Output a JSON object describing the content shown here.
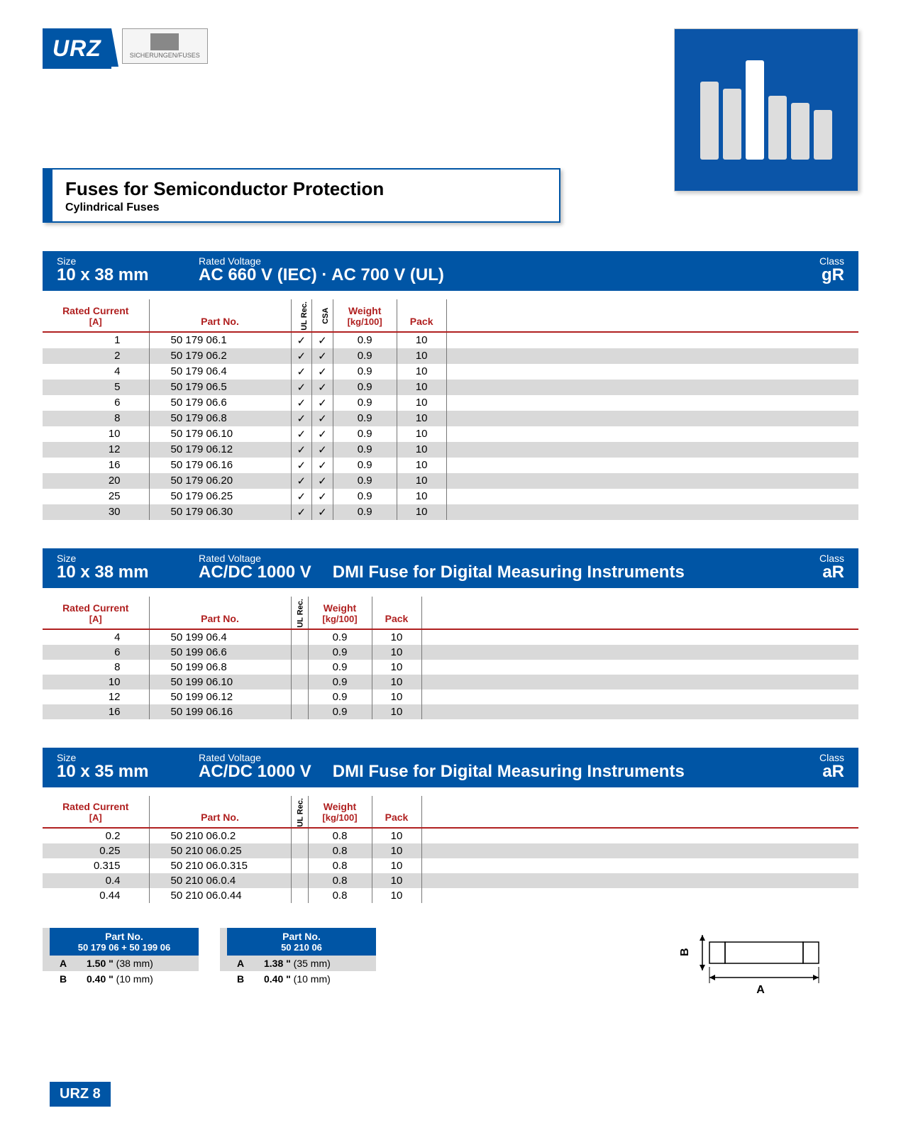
{
  "brand": "URZ",
  "sibaLabel": "SICHERUNGEN/FUSES",
  "title": "Fuses for Semiconductor Protection",
  "subtitle": "Cylindrical Fuses",
  "footer": "URZ 8",
  "columns": {
    "ratedCurrent": "Rated Current",
    "ratedCurrentUnit": "[A]",
    "partNo": "Part No.",
    "ulRec": "UL Rec.",
    "csa": "CSA",
    "weight": "Weight",
    "weightUnit": "[kg/100]",
    "pack": "Pack"
  },
  "headerLabels": {
    "size": "Size",
    "voltage": "Rated Voltage",
    "class": "Class"
  },
  "sections": [
    {
      "size": "10 x 38 mm",
      "voltage": "AC 660 V (IEC) · AC 700 V (UL)",
      "desc": "",
      "class": "gR",
      "hasCSA": true,
      "rows": [
        {
          "a": "1",
          "pn": "50 179 06.1",
          "ul": "✓",
          "csa": "✓",
          "w": "0.9",
          "p": "10"
        },
        {
          "a": "2",
          "pn": "50 179 06.2",
          "ul": "✓",
          "csa": "✓",
          "w": "0.9",
          "p": "10"
        },
        {
          "a": "4",
          "pn": "50 179 06.4",
          "ul": "✓",
          "csa": "✓",
          "w": "0.9",
          "p": "10"
        },
        {
          "a": "5",
          "pn": "50 179 06.5",
          "ul": "✓",
          "csa": "✓",
          "w": "0.9",
          "p": "10"
        },
        {
          "a": "6",
          "pn": "50 179 06.6",
          "ul": "✓",
          "csa": "✓",
          "w": "0.9",
          "p": "10"
        },
        {
          "a": "8",
          "pn": "50 179 06.8",
          "ul": "✓",
          "csa": "✓",
          "w": "0.9",
          "p": "10"
        },
        {
          "a": "10",
          "pn": "50 179 06.10",
          "ul": "✓",
          "csa": "✓",
          "w": "0.9",
          "p": "10"
        },
        {
          "a": "12",
          "pn": "50 179 06.12",
          "ul": "✓",
          "csa": "✓",
          "w": "0.9",
          "p": "10"
        },
        {
          "a": "16",
          "pn": "50 179 06.16",
          "ul": "✓",
          "csa": "✓",
          "w": "0.9",
          "p": "10"
        },
        {
          "a": "20",
          "pn": "50 179 06.20",
          "ul": "✓",
          "csa": "✓",
          "w": "0.9",
          "p": "10"
        },
        {
          "a": "25",
          "pn": "50 179 06.25",
          "ul": "✓",
          "csa": "✓",
          "w": "0.9",
          "p": "10"
        },
        {
          "a": "30",
          "pn": "50 179 06.30",
          "ul": "✓",
          "csa": "✓",
          "w": "0.9",
          "p": "10"
        }
      ]
    },
    {
      "size": "10 x 38 mm",
      "voltage": "AC/DC 1000 V",
      "desc": "DMI Fuse for Digital Measuring Instruments",
      "class": "aR",
      "hasCSA": false,
      "rows": [
        {
          "a": "4",
          "pn": "50 199 06.4",
          "ul": "",
          "w": "0.9",
          "p": "10"
        },
        {
          "a": "6",
          "pn": "50 199 06.6",
          "ul": "",
          "w": "0.9",
          "p": "10"
        },
        {
          "a": "8",
          "pn": "50 199 06.8",
          "ul": "",
          "w": "0.9",
          "p": "10"
        },
        {
          "a": "10",
          "pn": "50 199 06.10",
          "ul": "",
          "w": "0.9",
          "p": "10"
        },
        {
          "a": "12",
          "pn": "50 199 06.12",
          "ul": "",
          "w": "0.9",
          "p": "10"
        },
        {
          "a": "16",
          "pn": "50 199 06.16",
          "ul": "",
          "w": "0.9",
          "p": "10"
        }
      ]
    },
    {
      "size": "10 x 35 mm",
      "voltage": "AC/DC 1000 V",
      "desc": "DMI Fuse for Digital Measuring Instruments",
      "class": "aR",
      "hasCSA": false,
      "rows": [
        {
          "a": "0.2",
          "pn": "50 210 06.0.2",
          "ul": "",
          "w": "0.8",
          "p": "10"
        },
        {
          "a": "0.25",
          "pn": "50 210 06.0.25",
          "ul": "",
          "w": "0.8",
          "p": "10"
        },
        {
          "a": "0.315",
          "pn": "50 210 06.0.315",
          "ul": "",
          "w": "0.8",
          "p": "10"
        },
        {
          "a": "0.4",
          "pn": "50 210 06.0.4",
          "ul": "",
          "w": "0.8",
          "p": "10"
        },
        {
          "a": "0.44",
          "pn": "50 210 06.0.44",
          "ul": "",
          "w": "0.8",
          "p": "10"
        }
      ]
    }
  ],
  "dimBlocks": [
    {
      "title": "Part No.",
      "subtitle": "50 179 06 + 50 199 06",
      "rows": [
        {
          "k": "A",
          "v": "1.50 \"",
          "u": "(38 mm)"
        },
        {
          "k": "B",
          "v": "0.40 \"",
          "u": "(10 mm)"
        }
      ]
    },
    {
      "title": "Part No.",
      "subtitle": "50 210 06",
      "rows": [
        {
          "k": "A",
          "v": "1.38 \"",
          "u": "(35 mm)"
        },
        {
          "k": "B",
          "v": "0.40 \"",
          "u": "(10 mm)"
        }
      ]
    }
  ],
  "schematic": {
    "labelA": "A",
    "labelB": "B"
  },
  "colors": {
    "blue": "#0055a5",
    "red": "#b02020",
    "gray": "#d9d9d9"
  }
}
